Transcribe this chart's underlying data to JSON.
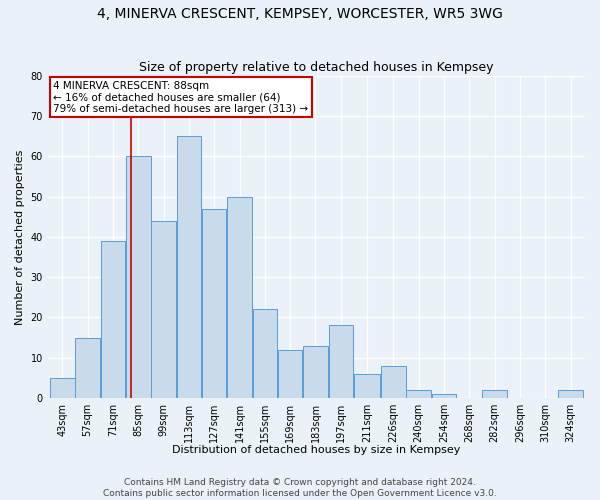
{
  "title": "4, MINERVA CRESCENT, KEMPSEY, WORCESTER, WR5 3WG",
  "subtitle": "Size of property relative to detached houses in Kempsey",
  "xlabel": "Distribution of detached houses by size in Kempsey",
  "ylabel": "Number of detached properties",
  "footer1": "Contains HM Land Registry data © Crown copyright and database right 2024.",
  "footer2": "Contains public sector information licensed under the Open Government Licence v3.0.",
  "bin_labels": [
    "43sqm",
    "57sqm",
    "71sqm",
    "85sqm",
    "99sqm",
    "113sqm",
    "127sqm",
    "141sqm",
    "155sqm",
    "169sqm",
    "183sqm",
    "197sqm",
    "211sqm",
    "226sqm",
    "240sqm",
    "254sqm",
    "268sqm",
    "282sqm",
    "296sqm",
    "310sqm",
    "324sqm"
  ],
  "bar_values": [
    5,
    15,
    39,
    60,
    44,
    65,
    47,
    50,
    22,
    12,
    13,
    18,
    6,
    8,
    2,
    1,
    0,
    2,
    0,
    0,
    2
  ],
  "bar_color": "#c9daea",
  "bar_edge_color": "#5b9bd5",
  "property_line_x": 88,
  "bin_edges": [
    43,
    57,
    71,
    85,
    99,
    113,
    127,
    141,
    155,
    169,
    183,
    197,
    211,
    226,
    240,
    254,
    268,
    282,
    296,
    310,
    324,
    338
  ],
  "annotation_text": "4 MINERVA CRESCENT: 88sqm\n← 16% of detached houses are smaller (64)\n79% of semi-detached houses are larger (313) →",
  "ylim": [
    0,
    80
  ],
  "yticks": [
    0,
    10,
    20,
    30,
    40,
    50,
    60,
    70,
    80
  ],
  "bg_color": "#eaf1f8",
  "grid_color": "#ffffff",
  "annotation_box_color": "#ffffff",
  "annotation_box_edge": "#cc0000",
  "vline_color": "#cc0000",
  "title_fontsize": 10,
  "subtitle_fontsize": 9,
  "axis_label_fontsize": 8,
  "tick_fontsize": 7,
  "footer_fontsize": 6.5
}
